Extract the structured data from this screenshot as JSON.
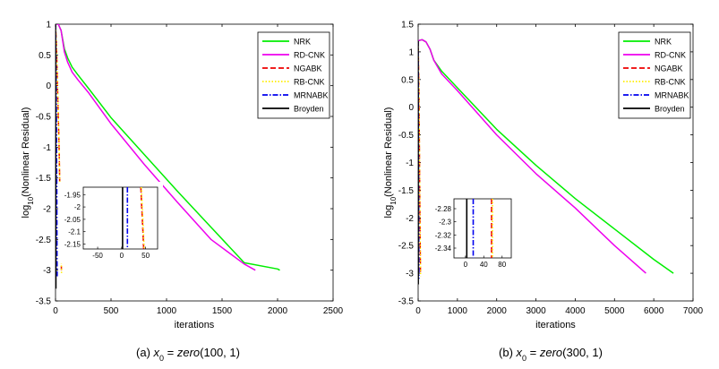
{
  "chart_data": [
    {
      "type": "line",
      "panel": "a",
      "caption": {
        "label": "(a)",
        "expr_x": "x",
        "expr_sub": "0",
        "expr_eq": " = ",
        "expr_fn": "zero",
        "expr_args": "(100, 1)"
      },
      "xlabel": "iterations",
      "ylabel": "log10(Nonlinear Residual)",
      "ylabel_parts": {
        "pre": "log",
        "sub": "10",
        "post": "(Nonlinear Residual)"
      },
      "xlim": [
        0,
        2500
      ],
      "ylim": [
        -3.5,
        1
      ],
      "xticks": [
        0,
        500,
        1000,
        1500,
        2000,
        2500
      ],
      "yticks": [
        -3.5,
        -3,
        -2.5,
        -2,
        -1.5,
        -1,
        -0.5,
        0,
        0.5,
        1
      ],
      "legend_position": "top-right",
      "series": [
        {
          "name": "NRK",
          "color": "#00ee00",
          "dash": "solid",
          "x": [
            0,
            25,
            50,
            80,
            110,
            150,
            200,
            300,
            500,
            800,
            1100,
            1400,
            1700,
            2000,
            2020
          ],
          "y": [
            1,
            1,
            0.9,
            0.6,
            0.45,
            0.3,
            0.18,
            -0.05,
            -0.52,
            -1.12,
            -1.72,
            -2.3,
            -2.88,
            -2.98,
            -3
          ]
        },
        {
          "name": "RD-CNK",
          "color": "#ee00ee",
          "dash": "solid",
          "x": [
            0,
            25,
            50,
            80,
            110,
            150,
            200,
            300,
            500,
            800,
            1100,
            1400,
            1700,
            1800
          ],
          "y": [
            1,
            1,
            0.9,
            0.55,
            0.38,
            0.22,
            0.1,
            -0.12,
            -0.62,
            -1.28,
            -1.9,
            -2.5,
            -2.9,
            -3
          ]
        },
        {
          "name": "NGABK",
          "color": "#ee0000",
          "dash": "dashed",
          "x": [
            0,
            10,
            18,
            25,
            32,
            40,
            48,
            53
          ],
          "y": [
            1,
            0.6,
            0,
            -0.5,
            -1,
            -1.8,
            -2.6,
            -3
          ]
        },
        {
          "name": "RB-CNK",
          "color": "#ffee00",
          "dash": "dotted",
          "x": [
            0,
            11,
            19,
            26,
            33,
            41,
            49,
            54
          ],
          "y": [
            1,
            0.55,
            -0.05,
            -0.55,
            -1.05,
            -1.85,
            -2.65,
            -3.05
          ]
        },
        {
          "name": "MRNABK",
          "color": "#0000ee",
          "dash": "dashdot",
          "x": [
            0,
            4,
            8,
            12,
            14,
            15
          ],
          "y": [
            1,
            0.5,
            -0.5,
            -1.8,
            -2.8,
            -3.1
          ]
        },
        {
          "name": "Broyden",
          "color": "#000000",
          "dash": "solid",
          "x": [
            0,
            1,
            2,
            3,
            4
          ],
          "y": [
            1,
            0.5,
            -1,
            -2.5,
            -3.3
          ]
        }
      ],
      "inset": {
        "xlim": [
          -80,
          75
        ],
        "ylim": [
          -2.17,
          -1.92
        ],
        "xticks": [
          -50,
          0,
          50
        ],
        "yticks": [
          -1.95,
          -2,
          -2.05,
          -2.1,
          -2.15
        ],
        "series": [
          {
            "name": "Broyden",
            "color": "#000000",
            "dash": "solid",
            "x": [
              2,
              2
            ],
            "y": [
              -1.92,
              -2.17
            ]
          },
          {
            "name": "MRNABK",
            "color": "#0000ee",
            "dash": "dashdot",
            "x": [
              12,
              12
            ],
            "y": [
              -1.92,
              -2.17
            ]
          },
          {
            "name": "NGABK",
            "color": "#ee0000",
            "dash": "dashed",
            "x": [
              40,
              42,
              44,
              46
            ],
            "y": [
              -1.92,
              -2.0,
              -2.08,
              -2.17
            ]
          },
          {
            "name": "RB-CNK",
            "color": "#ffee00",
            "dash": "dotted",
            "x": [
              41,
              43,
              45,
              47
            ],
            "y": [
              -1.92,
              -2.0,
              -2.08,
              -2.17
            ]
          }
        ]
      }
    },
    {
      "type": "line",
      "panel": "b",
      "caption": {
        "label": "(b)",
        "expr_x": "x",
        "expr_sub": "0",
        "expr_eq": " = ",
        "expr_fn": "zero",
        "expr_args": "(300, 1)"
      },
      "xlabel": "iterations",
      "ylabel": "log10(Nonlinear Residual)",
      "ylabel_parts": {
        "pre": "log",
        "sub": "10",
        "post": "(Nonlinear Residual)"
      },
      "xlim": [
        0,
        7000
      ],
      "ylim": [
        -3.5,
        1.5
      ],
      "xticks": [
        0,
        1000,
        2000,
        3000,
        4000,
        5000,
        6000,
        7000
      ],
      "yticks": [
        -3.5,
        -3,
        -2.5,
        -2,
        -1.5,
        -1,
        -0.5,
        0,
        0.5,
        1,
        1.5
      ],
      "legend_position": "top-right",
      "series": [
        {
          "name": "NRK",
          "color": "#00ee00",
          "dash": "solid",
          "x": [
            0,
            100,
            200,
            300,
            400,
            600,
            1000,
            2000,
            3000,
            4000,
            5000,
            6000,
            6500
          ],
          "y": [
            1.2,
            1.22,
            1.18,
            1.05,
            0.85,
            0.65,
            0.35,
            -0.4,
            -1.05,
            -1.65,
            -2.2,
            -2.75,
            -3
          ]
        },
        {
          "name": "RD-CNK",
          "color": "#ee00ee",
          "dash": "solid",
          "x": [
            0,
            100,
            200,
            300,
            400,
            600,
            1000,
            2000,
            3000,
            4000,
            5000,
            5800
          ],
          "y": [
            1.2,
            1.22,
            1.18,
            1.05,
            0.85,
            0.6,
            0.3,
            -0.5,
            -1.2,
            -1.82,
            -2.5,
            -3
          ]
        },
        {
          "name": "NGABK",
          "color": "#ee0000",
          "dash": "dashed",
          "x": [
            0,
            15,
            30,
            45,
            60
          ],
          "y": [
            1.2,
            0.5,
            -0.5,
            -2,
            -3
          ]
        },
        {
          "name": "RB-CNK",
          "color": "#ffee00",
          "dash": "dotted",
          "x": [
            0,
            16,
            31,
            46,
            61
          ],
          "y": [
            1.2,
            0.45,
            -0.55,
            -2.05,
            -3.05
          ]
        },
        {
          "name": "MRNABK",
          "color": "#0000ee",
          "dash": "dashdot",
          "x": [
            0,
            5,
            10,
            15,
            20
          ],
          "y": [
            1.2,
            0.6,
            -0.5,
            -2,
            -3.1
          ]
        },
        {
          "name": "Broyden",
          "color": "#000000",
          "dash": "solid",
          "x": [
            0,
            1,
            2,
            3,
            4
          ],
          "y": [
            1.2,
            0.5,
            -1,
            -2.5,
            -3.2
          ]
        }
      ],
      "inset": {
        "xlim": [
          -25,
          100
        ],
        "ylim": [
          -2.355,
          -2.265
        ],
        "xticks": [
          0,
          40,
          80
        ],
        "yticks": [
          -2.28,
          -2.3,
          -2.32,
          -2.34
        ],
        "series": [
          {
            "name": "Broyden",
            "color": "#000000",
            "dash": "solid",
            "x": [
              3,
              3
            ],
            "y": [
              -2.265,
              -2.355
            ]
          },
          {
            "name": "MRNABK",
            "color": "#0000ee",
            "dash": "dashdot",
            "x": [
              17,
              17
            ],
            "y": [
              -2.265,
              -2.355
            ]
          },
          {
            "name": "NGABK",
            "color": "#ee0000",
            "dash": "dashed",
            "x": [
              57,
              57
            ],
            "y": [
              -2.265,
              -2.355
            ]
          },
          {
            "name": "RB-CNK",
            "color": "#ffee00",
            "dash": "dotted",
            "x": [
              59,
              59
            ],
            "y": [
              -2.265,
              -2.355
            ]
          }
        ]
      }
    }
  ]
}
